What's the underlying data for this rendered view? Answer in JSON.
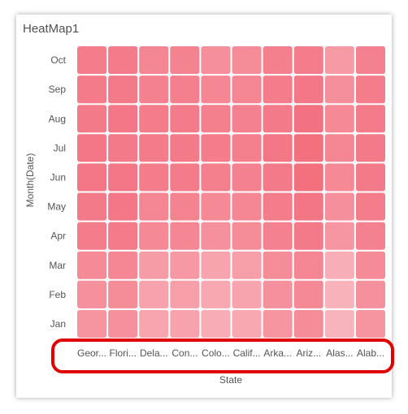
{
  "widget": {
    "title": "HeatMap1"
  },
  "colors": {
    "cell": "#f26a7a",
    "highlight": "#e00000"
  },
  "chart_data": {
    "type": "heatmap",
    "title": "HeatMap1",
    "xlabel": "State",
    "ylabel": "Month(Date)",
    "x_categories": [
      "Georgia",
      "Florida",
      "Delaware",
      "Connecticut",
      "Colorado",
      "California",
      "Arkansas",
      "Arizona",
      "Alaska",
      "Alabama"
    ],
    "x_tick_labels": [
      "Geor...",
      "Flori...",
      "Dela...",
      "Con...",
      "Colo...",
      "Calif...",
      "Arka...",
      "Ariz...",
      "Alas...",
      "Alab..."
    ],
    "y_categories": [
      "Oct",
      "Sep",
      "Aug",
      "Jul",
      "Jun",
      "May",
      "Apr",
      "Mar",
      "Feb",
      "Jan"
    ],
    "intensity_scale": [
      0,
      1
    ],
    "values": [
      [
        0.8,
        0.82,
        0.72,
        0.74,
        0.62,
        0.64,
        0.78,
        0.8,
        0.5,
        0.76
      ],
      [
        0.82,
        0.84,
        0.76,
        0.78,
        0.7,
        0.72,
        0.8,
        0.86,
        0.62,
        0.8
      ],
      [
        0.84,
        0.86,
        0.8,
        0.82,
        0.78,
        0.76,
        0.84,
        0.92,
        0.68,
        0.82
      ],
      [
        0.86,
        0.84,
        0.82,
        0.84,
        0.8,
        0.78,
        0.86,
        0.94,
        0.7,
        0.84
      ],
      [
        0.86,
        0.86,
        0.8,
        0.82,
        0.78,
        0.76,
        0.84,
        0.94,
        0.68,
        0.84
      ],
      [
        0.84,
        0.86,
        0.72,
        0.74,
        0.68,
        0.7,
        0.8,
        0.88,
        0.62,
        0.8
      ],
      [
        0.8,
        0.82,
        0.68,
        0.7,
        0.6,
        0.64,
        0.76,
        0.84,
        0.54,
        0.76
      ],
      [
        0.66,
        0.7,
        0.48,
        0.52,
        0.4,
        0.46,
        0.64,
        0.72,
        0.3,
        0.66
      ],
      [
        0.6,
        0.64,
        0.42,
        0.46,
        0.36,
        0.4,
        0.6,
        0.68,
        0.26,
        0.6
      ],
      [
        0.56,
        0.6,
        0.38,
        0.42,
        0.32,
        0.36,
        0.56,
        0.64,
        0.24,
        0.56
      ]
    ],
    "legend": "none",
    "grid": false
  }
}
